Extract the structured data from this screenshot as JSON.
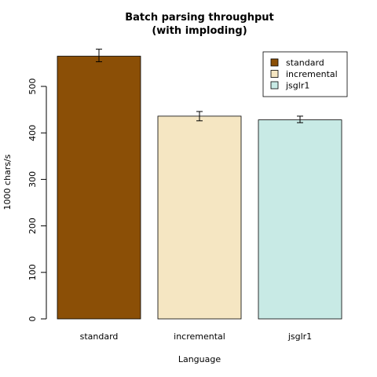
{
  "chart_data": {
    "type": "bar",
    "title": [
      "Batch parsing throughput",
      "(with imploding)"
    ],
    "xlabel": "Language",
    "ylabel": "1000 chars/s",
    "categories": [
      "standard",
      "incremental",
      "jsglr1"
    ],
    "values": [
      565,
      436,
      428
    ],
    "errors": [
      {
        "low": 553,
        "high": 580
      },
      {
        "low": 426,
        "high": 446
      },
      {
        "low": 422,
        "high": 436
      }
    ],
    "colors": [
      "#8B4F06",
      "#F5E6C2",
      "#C8EAE5"
    ],
    "ylim": [
      0,
      580
    ],
    "yticks": [
      0,
      100,
      200,
      300,
      400,
      500
    ],
    "grid": false,
    "legend": {
      "position": "top-right",
      "entries": [
        "standard",
        "incremental",
        "jsglr1"
      ]
    }
  }
}
